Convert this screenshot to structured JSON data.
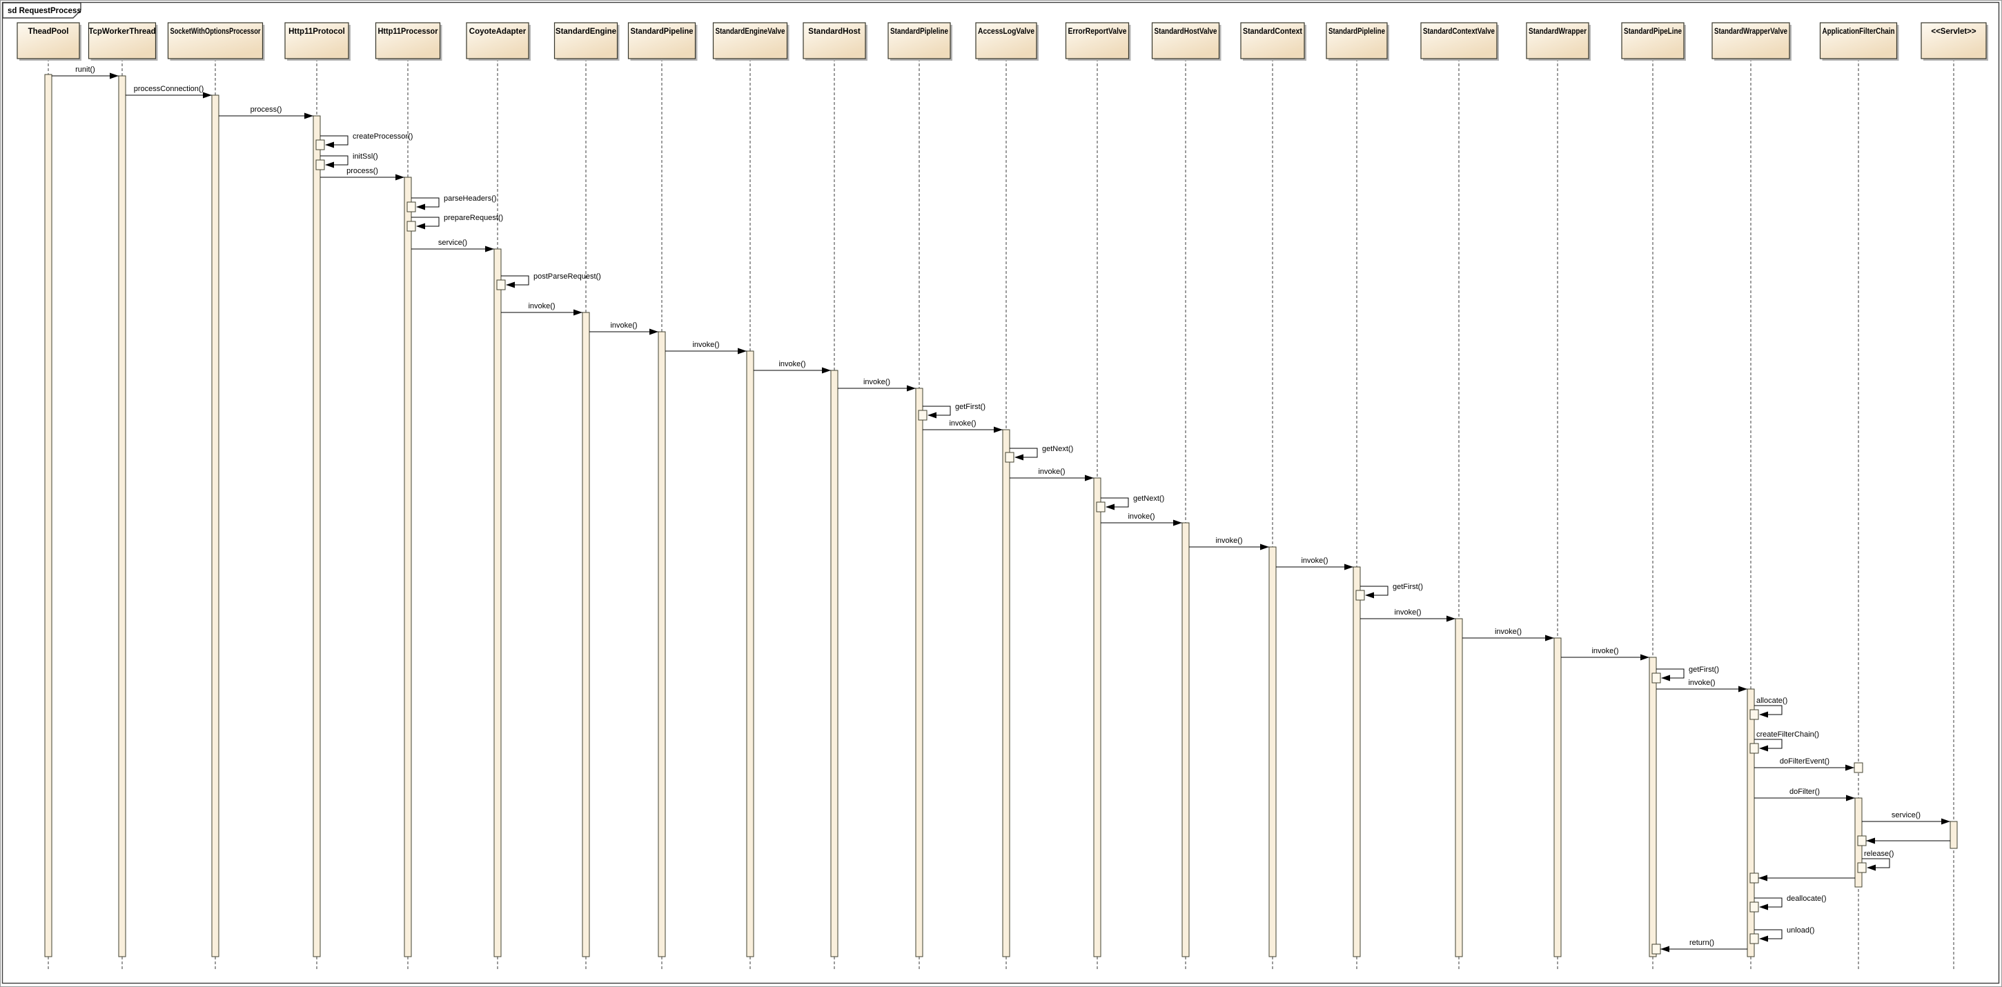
{
  "frame": {
    "label": "sd RequestProcess"
  },
  "lifelines": [
    {
      "name": "TheadPool"
    },
    {
      "name": "TcpWorkerThread"
    },
    {
      "name": "SocketWithOptionsProcessor"
    },
    {
      "name": "Http11Protocol"
    },
    {
      "name": "Http11Processor"
    },
    {
      "name": "CoyoteAdapter"
    },
    {
      "name": "StandardEngine"
    },
    {
      "name": "StandardPipeline"
    },
    {
      "name": "StandardEngineValve"
    },
    {
      "name": "StandardHost"
    },
    {
      "name": "StandardPipleline"
    },
    {
      "name": "AccessLogValve"
    },
    {
      "name": "ErrorReportValve"
    },
    {
      "name": "StandardHostValve"
    },
    {
      "name": "StandardContext"
    },
    {
      "name": "StandardPipleline"
    },
    {
      "name": "StandardContextValve"
    },
    {
      "name": "StandardWrapper"
    },
    {
      "name": "StandardPipeLine"
    },
    {
      "name": "StandardWrapperValve"
    },
    {
      "name": "ApplicationFilterChain"
    },
    {
      "name": "<<Servlet>>"
    }
  ],
  "messages": [
    {
      "label": "runit()",
      "kind": "call",
      "from": 0,
      "to": 1
    },
    {
      "label": "processConnection()",
      "kind": "call",
      "from": 1,
      "to": 2
    },
    {
      "label": "process()",
      "kind": "call",
      "from": 2,
      "to": 3
    },
    {
      "label": "createProcessor()",
      "kind": "self",
      "from": 3,
      "to": 3,
      "label_pos": "right"
    },
    {
      "label": "initSsl()",
      "kind": "self",
      "from": 3,
      "to": 3,
      "label_pos": "right"
    },
    {
      "label": "process()",
      "kind": "call",
      "from": 3,
      "to": 4
    },
    {
      "label": "parseHeaders()",
      "kind": "self",
      "from": 4,
      "to": 4,
      "label_pos": "right"
    },
    {
      "label": "prepareRequest()",
      "kind": "self",
      "from": 4,
      "to": 4,
      "label_pos": "right"
    },
    {
      "label": "service()",
      "kind": "call",
      "from": 4,
      "to": 5
    },
    {
      "label": "postParseRequest()",
      "kind": "self",
      "from": 5,
      "to": 5,
      "label_pos": "right"
    },
    {
      "label": "invoke()",
      "kind": "call",
      "from": 5,
      "to": 6
    },
    {
      "label": "invoke()",
      "kind": "call",
      "from": 6,
      "to": 7
    },
    {
      "label": "invoke()",
      "kind": "call",
      "from": 7,
      "to": 8
    },
    {
      "label": "invoke()",
      "kind": "call",
      "from": 8,
      "to": 9
    },
    {
      "label": "invoke()",
      "kind": "call",
      "from": 9,
      "to": 10
    },
    {
      "label": "getFirst()",
      "kind": "self",
      "from": 10,
      "to": 10,
      "label_pos": "right"
    },
    {
      "label": "invoke()",
      "kind": "call",
      "from": 10,
      "to": 11
    },
    {
      "label": "getNext()",
      "kind": "self",
      "from": 11,
      "to": 11,
      "label_pos": "right"
    },
    {
      "label": "invoke()",
      "kind": "call",
      "from": 11,
      "to": 12
    },
    {
      "label": "getNext()",
      "kind": "self",
      "from": 12,
      "to": 12,
      "label_pos": "right"
    },
    {
      "label": "invoke()",
      "kind": "call",
      "from": 12,
      "to": 13
    },
    {
      "label": "invoke()",
      "kind": "call",
      "from": 13,
      "to": 14
    },
    {
      "label": "invoke()",
      "kind": "call",
      "from": 14,
      "to": 15
    },
    {
      "label": "getFirst()",
      "kind": "self",
      "from": 15,
      "to": 15,
      "label_pos": "right"
    },
    {
      "label": "invoke()",
      "kind": "call",
      "from": 15,
      "to": 16
    },
    {
      "label": "invoke()",
      "kind": "call",
      "from": 16,
      "to": 17
    },
    {
      "label": "invoke()",
      "kind": "call",
      "from": 17,
      "to": 18
    },
    {
      "label": "getFirst()",
      "kind": "self",
      "from": 18,
      "to": 18,
      "label_pos": "right"
    },
    {
      "label": "invoke()",
      "kind": "call",
      "from": 18,
      "to": 19
    },
    {
      "label": "allocate()",
      "kind": "self",
      "from": 19,
      "to": 19,
      "label_pos": "above"
    },
    {
      "label": "createFilterChain()",
      "kind": "self",
      "from": 19,
      "to": 19,
      "label_pos": "above"
    },
    {
      "label": "doFilterEvent()",
      "kind": "call",
      "from": 19,
      "to": 20,
      "target_box": "new"
    },
    {
      "label": "doFilter()",
      "kind": "call",
      "from": 19,
      "to": 20
    },
    {
      "label": "service()",
      "kind": "call",
      "from": 20,
      "to": 21
    },
    {
      "label": "",
      "kind": "return",
      "from": 21,
      "to": 20
    },
    {
      "label": "release()",
      "kind": "self",
      "from": 20,
      "to": 20,
      "label_pos": "above"
    },
    {
      "label": "",
      "kind": "return",
      "from": 20,
      "to": 19
    },
    {
      "label": "deallocate()",
      "kind": "self",
      "from": 19,
      "to": 19,
      "label_pos": "right"
    },
    {
      "label": "unload()",
      "kind": "self",
      "from": 19,
      "to": 19,
      "label_pos": "right"
    },
    {
      "label": "return()",
      "kind": "return",
      "from": 19,
      "to": 18
    }
  ],
  "colors": {
    "box_fill_top": "#fefaf1",
    "box_fill_bottom": "#efdbbb",
    "activation_fill": "#f9efdc",
    "nested_box_fill": "#fdf8ec",
    "shadow": "#b4b4b4",
    "line": "#000000",
    "background": "#ffffff"
  }
}
